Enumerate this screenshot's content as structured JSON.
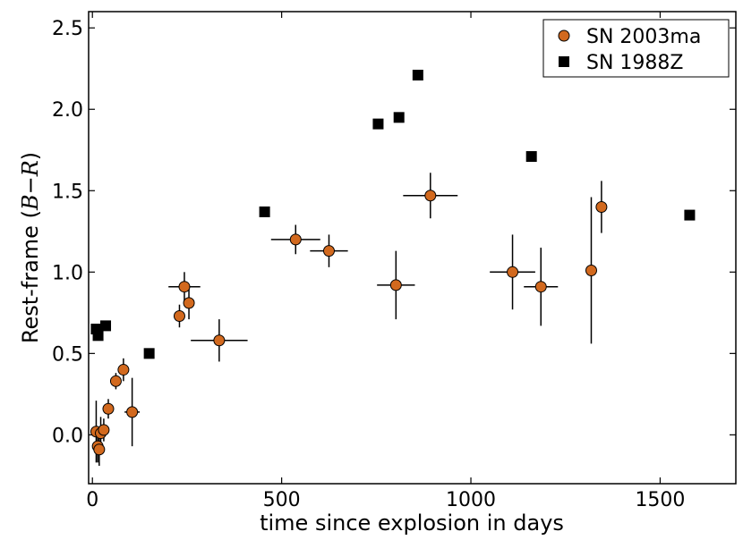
{
  "chart_data": {
    "type": "scatter",
    "title": "",
    "xlabel": "time since explosion in days",
    "ylabel": {
      "prefix": "Rest-frame (",
      "var1": "B",
      "dash": "−",
      "var2": "R",
      "suffix": ")"
    },
    "xlim": [
      -10,
      1700
    ],
    "ylim": [
      -0.3,
      2.6
    ],
    "xticks": [
      0,
      500,
      1000,
      1500
    ],
    "xtick_labels": [
      "0",
      "500",
      "1000",
      "1500"
    ],
    "yticks": [
      0.0,
      0.5,
      1.0,
      1.5,
      2.0,
      2.5
    ],
    "ytick_labels": [
      "0.0",
      "0.5",
      "1.0",
      "1.5",
      "2.0",
      "2.5"
    ],
    "grid": false,
    "legend_position": "top-right",
    "series": [
      {
        "name": "SN 2003ma",
        "marker": "circle",
        "color": "#d2691e",
        "points": [
          {
            "x": 10,
            "y": 0.02,
            "xerr": 0,
            "yerr": 0.19
          },
          {
            "x": 14,
            "y": -0.07,
            "xerr": 0,
            "yerr": 0.1
          },
          {
            "x": 18,
            "y": -0.09,
            "xerr": 0,
            "yerr": 0.1
          },
          {
            "x": 22,
            "y": 0.01,
            "xerr": 0,
            "yerr": 0.1
          },
          {
            "x": 30,
            "y": 0.03,
            "xerr": 0,
            "yerr": 0.07
          },
          {
            "x": 42,
            "y": 0.16,
            "xerr": 0,
            "yerr": 0.06
          },
          {
            "x": 62,
            "y": 0.33,
            "xerr": 0,
            "yerr": 0.05
          },
          {
            "x": 82,
            "y": 0.4,
            "xerr": 0,
            "yerr": 0.07
          },
          {
            "x": 105,
            "y": 0.14,
            "xerr": 20,
            "yerr": 0.21
          },
          {
            "x": 230,
            "y": 0.73,
            "xerr": 0,
            "yerr": 0.07
          },
          {
            "x": 243,
            "y": 0.91,
            "xerr": 42,
            "yerr": 0.09
          },
          {
            "x": 255,
            "y": 0.81,
            "xerr": 0,
            "yerr": 0.1
          },
          {
            "x": 335,
            "y": 0.58,
            "xerr": 75,
            "yerr": 0.13
          },
          {
            "x": 537,
            "y": 1.2,
            "xerr": 65,
            "yerr": 0.09
          },
          {
            "x": 625,
            "y": 1.13,
            "xerr": 50,
            "yerr": 0.1
          },
          {
            "x": 802,
            "y": 0.92,
            "xerr": 50,
            "yerr": 0.21
          },
          {
            "x": 893,
            "y": 1.47,
            "xerr": 72,
            "yerr": 0.14
          },
          {
            "x": 1110,
            "y": 1.0,
            "xerr": 60,
            "yerr": 0.23
          },
          {
            "x": 1185,
            "y": 0.91,
            "xerr": 45,
            "yerr": 0.24
          },
          {
            "x": 1318,
            "y": 1.01,
            "xerr": 0,
            "yerr": 0.45
          },
          {
            "x": 1345,
            "y": 1.4,
            "xerr": 0,
            "yerr": 0.16
          }
        ]
      },
      {
        "name": "SN 1988Z",
        "marker": "square",
        "color": "#000000",
        "points": [
          {
            "x": 10,
            "y": 0.65
          },
          {
            "x": 15,
            "y": 0.61
          },
          {
            "x": 35,
            "y": 0.67
          },
          {
            "x": 150,
            "y": 0.5
          },
          {
            "x": 455,
            "y": 1.37
          },
          {
            "x": 755,
            "y": 1.91
          },
          {
            "x": 810,
            "y": 1.95
          },
          {
            "x": 860,
            "y": 2.21
          },
          {
            "x": 1160,
            "y": 1.71
          },
          {
            "x": 1578,
            "y": 1.35
          }
        ]
      }
    ]
  }
}
